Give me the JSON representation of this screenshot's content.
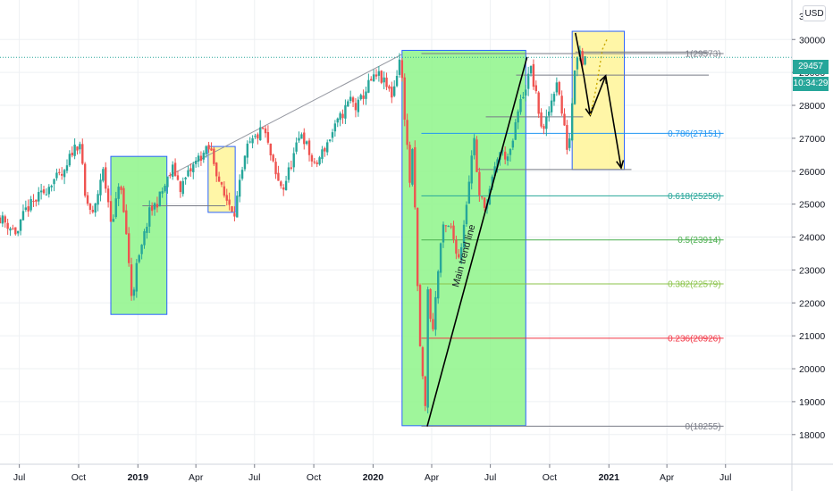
{
  "header": {
    "currency": "USD"
  },
  "price_tags": {
    "last_price": "29457",
    "countdown": "10:34:29",
    "color": "#26a69a"
  },
  "chart_data": {
    "type": "candlestick",
    "title": "",
    "xlabel": "",
    "ylabel": "",
    "ylim": [
      17100,
      31200
    ],
    "y_ticks": [
      18000,
      19000,
      20000,
      21000,
      22000,
      23000,
      24000,
      25000,
      26000,
      27000,
      28000,
      29000,
      30000
    ],
    "top_partial_tick": "3",
    "x_ticks": [
      {
        "label": "Jul",
        "date": "2018-07-01",
        "bold": false
      },
      {
        "label": "Oct",
        "date": "2018-10-01",
        "bold": false
      },
      {
        "label": "2019",
        "date": "2019-01-01",
        "bold": true
      },
      {
        "label": "Apr",
        "date": "2019-04-01",
        "bold": false
      },
      {
        "label": "Jul",
        "date": "2019-07-01",
        "bold": false
      },
      {
        "label": "Oct",
        "date": "2019-10-01",
        "bold": false
      },
      {
        "label": "2020",
        "date": "2020-01-01",
        "bold": true
      },
      {
        "label": "Apr",
        "date": "2020-04-01",
        "bold": false
      },
      {
        "label": "Jul",
        "date": "2020-07-01",
        "bold": false
      },
      {
        "label": "Oct",
        "date": "2020-10-01",
        "bold": false
      },
      {
        "label": "2021",
        "date": "2021-01-01",
        "bold": true
      },
      {
        "label": "Apr",
        "date": "2021-04-01",
        "bold": false
      },
      {
        "label": "Jul",
        "date": "2021-07-01",
        "bold": false
      }
    ],
    "grid": true,
    "up_color": "#26a69a",
    "down_color": "#ef5350",
    "price_path": [
      [
        "2018-06-01",
        24600
      ],
      [
        "2018-06-28",
        24100
      ],
      [
        "2018-07-10",
        24800
      ],
      [
        "2018-08-10",
        25400
      ],
      [
        "2018-08-20",
        25700
      ],
      [
        "2018-09-10",
        25900
      ],
      [
        "2018-09-20",
        26600
      ],
      [
        "2018-10-03",
        26900
      ],
      [
        "2018-10-11",
        25200
      ],
      [
        "2018-10-24",
        24600
      ],
      [
        "2018-11-07",
        26100
      ],
      [
        "2018-11-23",
        24300
      ],
      [
        "2018-12-03",
        25800
      ],
      [
        "2018-12-14",
        24100
      ],
      [
        "2018-12-24",
        21800
      ],
      [
        "2018-12-27",
        22900
      ],
      [
        "2019-01-04",
        23400
      ],
      [
        "2019-01-18",
        24700
      ],
      [
        "2019-02-01",
        25100
      ],
      [
        "2019-02-25",
        26100
      ],
      [
        "2019-03-08",
        25500
      ],
      [
        "2019-03-20",
        25900
      ],
      [
        "2019-04-05",
        26400
      ],
      [
        "2019-04-23",
        26700
      ],
      [
        "2019-05-13",
        25300
      ],
      [
        "2019-05-31",
        24800
      ],
      [
        "2019-06-20",
        26700
      ],
      [
        "2019-07-15",
        27300
      ],
      [
        "2019-08-05",
        25700
      ],
      [
        "2019-08-15",
        25500
      ],
      [
        "2019-09-12",
        27200
      ],
      [
        "2019-10-02",
        26100
      ],
      [
        "2019-10-28",
        27100
      ],
      [
        "2019-11-27",
        28200
      ],
      [
        "2019-12-06",
        27900
      ],
      [
        "2019-12-27",
        28700
      ],
      [
        "2020-01-10",
        28900
      ],
      [
        "2020-01-31",
        28300
      ],
      [
        "2020-02-12",
        29500
      ],
      [
        "2020-02-27",
        25700
      ],
      [
        "2020-03-03",
        26700
      ],
      [
        "2020-03-12",
        21200
      ],
      [
        "2020-03-16",
        20200
      ],
      [
        "2020-03-20",
        19200
      ],
      [
        "2020-03-23",
        18600
      ],
      [
        "2020-03-26",
        22500
      ],
      [
        "2020-04-01",
        20900
      ],
      [
        "2020-04-17",
        24200
      ],
      [
        "2020-04-30",
        24300
      ],
      [
        "2020-05-14",
        23300
      ],
      [
        "2020-06-08",
        27400
      ],
      [
        "2020-06-11",
        25200
      ],
      [
        "2020-06-26",
        25000
      ],
      [
        "2020-07-14",
        26600
      ],
      [
        "2020-07-31",
        26400
      ],
      [
        "2020-08-14",
        27900
      ],
      [
        "2020-09-02",
        29100
      ],
      [
        "2020-09-21",
        27100
      ],
      [
        "2020-10-12",
        28800
      ],
      [
        "2020-10-30",
        26500
      ],
      [
        "2020-11-09",
        29200
      ],
      [
        "2020-11-16",
        29900
      ],
      [
        "2020-11-20",
        29300
      ],
      [
        "2020-11-25",
        29457
      ]
    ],
    "fibonacci": {
      "levels": [
        {
          "label": "1(29573)",
          "value": 29573,
          "color": "#787b86"
        },
        {
          "label": "0.786(27151)",
          "value": 27151,
          "color": "#2196f3"
        },
        {
          "label": "0.618(25250)",
          "value": 25250,
          "color": "#26a69a"
        },
        {
          "label": "0.5(23914)",
          "value": 23914,
          "color": "#4caf50"
        },
        {
          "label": "0.382(22579)",
          "value": 22579,
          "color": "#8bc34a"
        },
        {
          "label": "0.236(20926)",
          "value": 20926,
          "color": "#f23645"
        },
        {
          "label": "0(18255)",
          "value": 18255,
          "color": "#787b86"
        }
      ],
      "start": "2020-03-16",
      "end": "2021-06-28"
    },
    "annotations": {
      "trend_line_label": "Main trend line",
      "green_zones": [
        {
          "start": "2018-11-20",
          "end": "2019-02-15",
          "low": 21650,
          "high": 26450
        },
        {
          "start": "2020-02-15",
          "end": "2020-08-25",
          "low": 18270,
          "high": 29670
        }
      ],
      "yellow_zones": [
        {
          "start": "2019-04-20",
          "end": "2019-06-01",
          "low": 24750,
          "high": 26750
        },
        {
          "start": "2020-11-05",
          "end": "2021-01-25",
          "low": 26050,
          "high": 30250
        }
      ],
      "rising_line": {
        "from": [
          "2019-02-17",
          25850
        ],
        "to": [
          "2020-02-15",
          29550
        ]
      },
      "main_trend_line": {
        "from": [
          "2020-03-25",
          18250
        ],
        "to": [
          "2020-08-27",
          29470
        ]
      },
      "horizontal_rays": [
        {
          "from": "2019-01-08",
          "to": "2019-05-17",
          "value": 24950
        },
        {
          "from": "2020-06-24",
          "to": "2020-11-22",
          "value": 27650
        },
        {
          "from": "2020-06-10",
          "to": "2021-02-05",
          "value": 26050
        },
        {
          "from": "2020-08-10",
          "to": "2021-06-05",
          "value": 28920
        },
        {
          "from": "2020-11-10",
          "to": "2021-06-05",
          "value": 29620
        }
      ],
      "projection_path": [
        [
          "2020-11-10",
          30200
        ],
        [
          "2020-11-23",
          28900
        ],
        [
          "2020-12-03",
          27700
        ],
        [
          "2020-12-27",
          28900
        ],
        [
          "2021-01-20",
          26100
        ]
      ],
      "dotted_path": [
        [
          "2020-12-03",
          27700
        ],
        [
          "2020-12-12",
          28500
        ],
        [
          "2020-12-22",
          29700
        ],
        [
          "2020-12-30",
          30050
        ]
      ]
    }
  }
}
